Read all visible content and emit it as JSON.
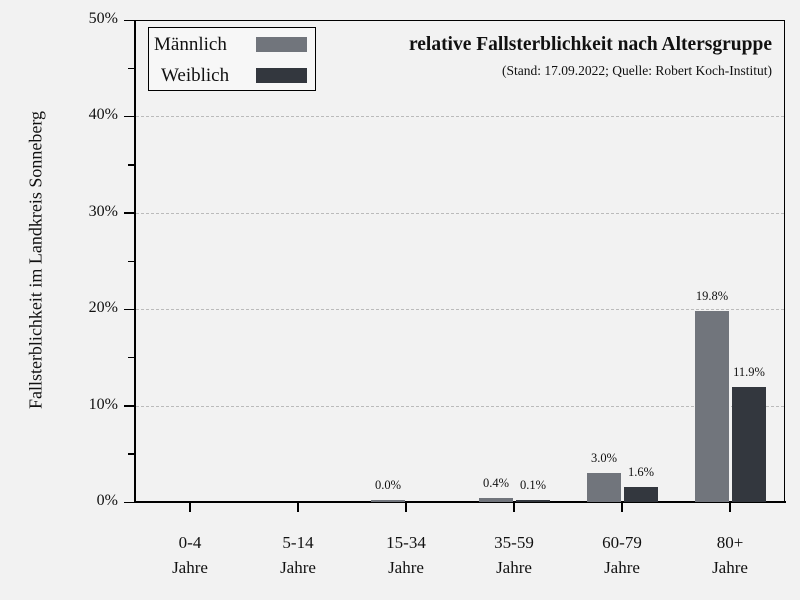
{
  "chart_data": {
    "type": "bar",
    "title": "relative Fallsterblichkeit nach Altersgruppe",
    "subtitle": "(Stand: 17.09.2022; Quelle: Robert Koch-Institut)",
    "xlabel": "",
    "ylabel": "Fallsterblichkeit im Landkreis Sonneberg",
    "ylim": [
      0,
      50
    ],
    "yticks": [
      "0%",
      "10%",
      "20%",
      "30%",
      "40%",
      "50%"
    ],
    "grid": "horizontal dashed at 10% steps",
    "legend_position": "top-left",
    "categories": [
      {
        "line1": "0-4",
        "line2": "Jahre"
      },
      {
        "line1": "5-14",
        "line2": "Jahre"
      },
      {
        "line1": "15-34",
        "line2": "Jahre"
      },
      {
        "line1": "35-59",
        "line2": "Jahre"
      },
      {
        "line1": "60-79",
        "line2": "Jahre"
      },
      {
        "line1": "80+",
        "line2": "Jahre"
      }
    ],
    "series": [
      {
        "name": "Männlich",
        "color": "#71757c",
        "values": [
          null,
          null,
          0.0,
          0.4,
          3.0,
          19.8
        ],
        "labels": [
          "",
          "",
          "0.0%",
          "0.4%",
          "3.0%",
          "19.8%"
        ]
      },
      {
        "name": "Weiblich",
        "color": "#33373e",
        "values": [
          null,
          null,
          null,
          0.1,
          1.6,
          11.9
        ],
        "labels": [
          "",
          "",
          "",
          "0.1%",
          "1.6%",
          "11.9%"
        ]
      }
    ]
  },
  "legend": {
    "items": [
      {
        "label": "Männlich",
        "color": "#71757c"
      },
      {
        "label": "Weiblich",
        "color": "#33373e"
      }
    ]
  }
}
